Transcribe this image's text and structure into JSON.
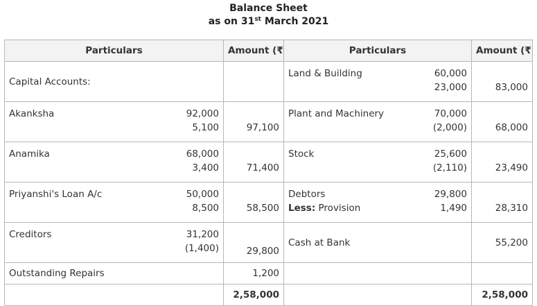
{
  "title": {
    "line1": "Balance Sheet",
    "line2_prefix": "as on 31",
    "line2_sup": "st",
    "line2_suffix": " March 2021"
  },
  "headers": {
    "particulars": "Particulars",
    "amount": "Amount (₹)"
  },
  "liabilities": {
    "capital_accounts": "Capital Accounts:",
    "akanksha": {
      "label": "Akanksha",
      "sub1": "92,000",
      "sub2": "5,100",
      "amount": "97,100"
    },
    "anamika": {
      "label": "Anamika",
      "sub1": "68,000",
      "sub2": "3,400",
      "amount": "71,400"
    },
    "priyanshi": {
      "label": "Priyanshi's Loan A/c",
      "sub1": "50,000",
      "sub2": "8,500",
      "amount": "58,500"
    },
    "creditors": {
      "label": "Creditors",
      "sub1": "31,200",
      "sub2": "(1,400)",
      "amount": "29,800"
    },
    "outstanding_repairs": {
      "label": "Outstanding Repairs",
      "amount": "1,200"
    },
    "total": "2,58,000"
  },
  "assets": {
    "land": {
      "label": "Land & Building",
      "sub1": "60,000",
      "sub2": "23,000",
      "amount": "83,000"
    },
    "plant": {
      "label": "Plant and Machinery",
      "sub1": "70,000",
      "sub2": "(2,000)",
      "amount": "68,000"
    },
    "stock": {
      "label": "Stock",
      "sub1": "25,600",
      "sub2": "(2,110)",
      "amount": "23,490"
    },
    "debtors": {
      "label": "Debtors",
      "less_label": "Less:",
      "less_text": " Provision",
      "sub1": "29,800",
      "sub2": "1,490",
      "amount": "28,310"
    },
    "cash": {
      "label": "Cash at Bank",
      "amount": "55,200"
    },
    "total": "2,58,000"
  }
}
